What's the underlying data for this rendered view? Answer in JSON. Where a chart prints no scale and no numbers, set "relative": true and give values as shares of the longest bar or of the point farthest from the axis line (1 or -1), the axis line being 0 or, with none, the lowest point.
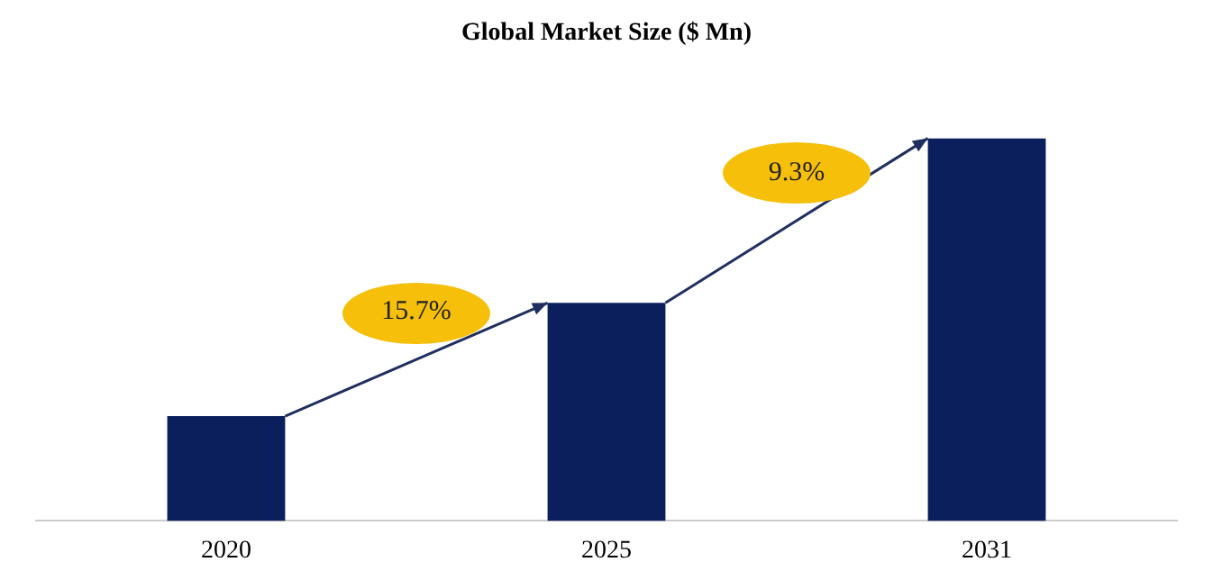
{
  "chart_data": {
    "type": "bar",
    "title": "Global Market Size ($ Mn)",
    "categories": [
      "2020",
      "2025",
      "2031"
    ],
    "values": [
      0.274,
      0.57,
      1
    ],
    "color": "#0b1f5c",
    "relative": true,
    "grid": false,
    "legend": false,
    "annotations": [
      "15.7%",
      "9.3%"
    ]
  }
}
